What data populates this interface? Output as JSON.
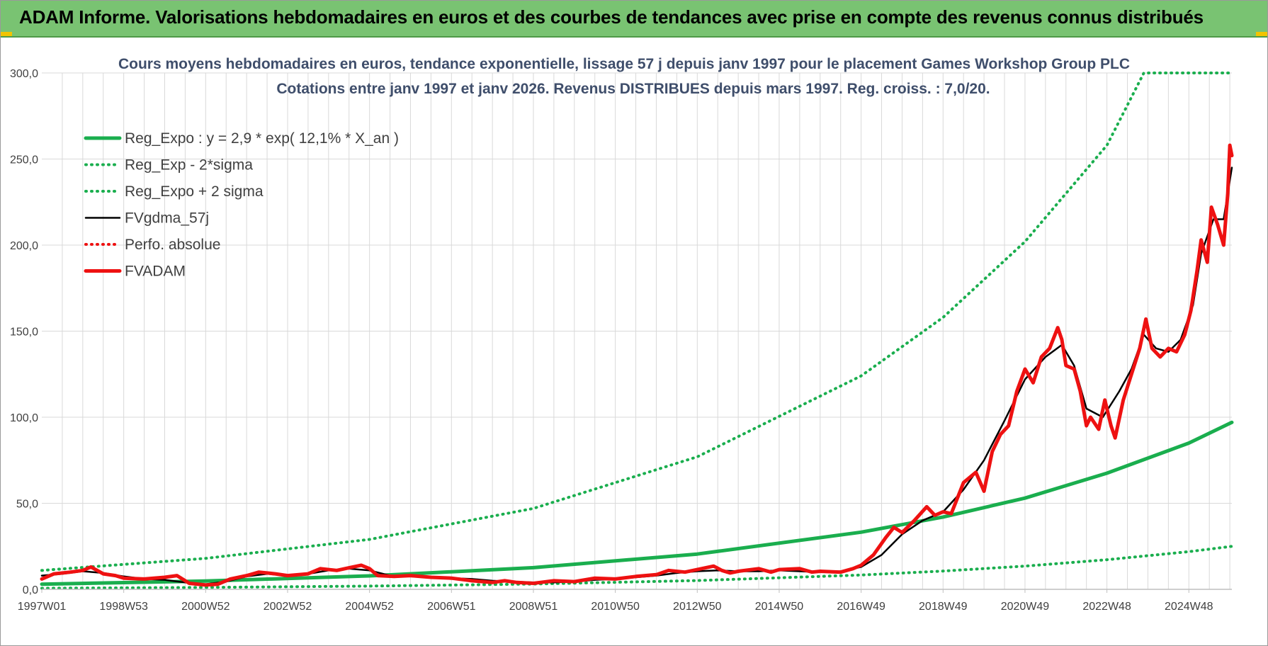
{
  "banner": {
    "title": "ADAM Informe. Valorisations hebdomadaires en euros et des courbes de tendances avec prise en compte des revenus connus distribués"
  },
  "colors": {
    "banner_bg": "#79c372",
    "reg_green": "#1aae4e",
    "fvgdma_black": "#000000",
    "fvadam_red": "#ee1111",
    "gridline": "#d9d9d9",
    "title_text": "#3f4e6b"
  },
  "chart_data": {
    "type": "line",
    "title": "Cours moyens hebdomadaires en euros, tendance exponentielle, lissage 57 j depuis janv 1997 pour le placement Games Workshop Group PLC",
    "subtitle": "Cotations entre janv 1997 et janv 2026. Revenus DISTRIBUES depuis mars 1997. Reg. croiss. : 7,0/20.",
    "xlabel": "",
    "ylabel": "",
    "xlim": [
      1997.0,
      2026.05
    ],
    "ylim": [
      0,
      300
    ],
    "y_ticks": [
      0,
      50,
      100,
      150,
      200,
      250,
      300
    ],
    "y_tick_labels": [
      "0,0",
      "50,0",
      "100,0",
      "150,0",
      "200,0",
      "250,0",
      "300,0"
    ],
    "x_ticks": [
      1997.0,
      1999.0,
      2001.0,
      2003.0,
      2005.0,
      2007.0,
      2009.0,
      2011.0,
      2013.0,
      2015.0,
      2017.0,
      2019.0,
      2021.0,
      2023.0,
      2025.0
    ],
    "x_tick_labels": [
      "1997W01",
      "1998W53",
      "2000W52",
      "2002W52",
      "2004W52",
      "2006W51",
      "2008W51",
      "2010W50",
      "2012W50",
      "2014W50",
      "2016W49",
      "2018W49",
      "2020W49",
      "2022W48",
      "2024W48"
    ],
    "grid": true,
    "legend_position": "top-left",
    "series": [
      {
        "name": "Reg_Expo : y = 2,9 * exp( 12,1% *  X_an )",
        "style": "solid-thick",
        "color": "#1aae4e",
        "points": [
          [
            1997.0,
            3.0
          ],
          [
            2001.0,
            4.8
          ],
          [
            2005.0,
            7.8
          ],
          [
            2009.0,
            12.6
          ],
          [
            2013.0,
            20.5
          ],
          [
            2017.0,
            33.2
          ],
          [
            2019.0,
            42.0
          ],
          [
            2021.0,
            53.0
          ],
          [
            2023.0,
            67.5
          ],
          [
            2025.0,
            85.0
          ],
          [
            2026.05,
            97.0
          ]
        ]
      },
      {
        "name": "Reg_Exp - 2*sigma",
        "style": "dotted",
        "color": "#1aae4e",
        "points": [
          [
            1997.0,
            0.6
          ],
          [
            2001.0,
            1.1
          ],
          [
            2005.0,
            1.9
          ],
          [
            2009.0,
            3.1
          ],
          [
            2013.0,
            5.1
          ],
          [
            2017.0,
            8.3
          ],
          [
            2019.0,
            10.6
          ],
          [
            2021.0,
            13.5
          ],
          [
            2023.0,
            17.2
          ],
          [
            2025.0,
            21.9
          ],
          [
            2026.05,
            25.0
          ]
        ]
      },
      {
        "name": "Reg_Expo + 2 sigma",
        "style": "dotted",
        "color": "#1aae4e",
        "points": [
          [
            1997.0,
            11.0
          ],
          [
            2001.0,
            18.0
          ],
          [
            2005.0,
            29.0
          ],
          [
            2009.0,
            47.0
          ],
          [
            2013.0,
            77.0
          ],
          [
            2017.0,
            124.0
          ],
          [
            2019.0,
            158.0
          ],
          [
            2021.0,
            202.0
          ],
          [
            2023.0,
            258.0
          ],
          [
            2023.9,
            300.0
          ],
          [
            2026.05,
            300.0
          ]
        ]
      },
      {
        "name": "FVgdma_57j",
        "style": "solid",
        "color": "#000000",
        "points": [
          [
            1997.0,
            8.0
          ],
          [
            1997.5,
            9.0
          ],
          [
            1998.0,
            10.5
          ],
          [
            1998.5,
            9.5
          ],
          [
            1999.0,
            7.5
          ],
          [
            1999.5,
            6.0
          ],
          [
            2000.0,
            5.5
          ],
          [
            2000.5,
            4.0
          ],
          [
            2001.0,
            3.0
          ],
          [
            2001.5,
            4.5
          ],
          [
            2002.0,
            7.5
          ],
          [
            2002.5,
            9.0
          ],
          [
            2003.0,
            8.0
          ],
          [
            2003.5,
            9.0
          ],
          [
            2004.0,
            11.0
          ],
          [
            2004.5,
            12.0
          ],
          [
            2005.0,
            11.0
          ],
          [
            2005.5,
            8.0
          ],
          [
            2006.0,
            7.5
          ],
          [
            2006.5,
            7.0
          ],
          [
            2007.0,
            6.5
          ],
          [
            2007.5,
            6.0
          ],
          [
            2008.0,
            5.0
          ],
          [
            2008.5,
            4.5
          ],
          [
            2009.0,
            4.0
          ],
          [
            2009.5,
            4.0
          ],
          [
            2010.0,
            4.5
          ],
          [
            2010.5,
            5.5
          ],
          [
            2011.0,
            6.0
          ],
          [
            2011.5,
            7.0
          ],
          [
            2012.0,
            8.0
          ],
          [
            2012.5,
            9.5
          ],
          [
            2013.0,
            10.5
          ],
          [
            2013.5,
            11.0
          ],
          [
            2014.0,
            10.5
          ],
          [
            2014.5,
            10.5
          ],
          [
            2015.0,
            11.0
          ],
          [
            2015.5,
            10.5
          ],
          [
            2016.0,
            10.0
          ],
          [
            2016.5,
            10.5
          ],
          [
            2017.0,
            13.0
          ],
          [
            2017.5,
            20.0
          ],
          [
            2018.0,
            32.0
          ],
          [
            2018.5,
            40.0
          ],
          [
            2019.0,
            45.0
          ],
          [
            2019.5,
            58.0
          ],
          [
            2020.0,
            75.0
          ],
          [
            2020.5,
            98.0
          ],
          [
            2021.0,
            122.0
          ],
          [
            2021.5,
            135.0
          ],
          [
            2021.9,
            142.0
          ],
          [
            2022.2,
            130.0
          ],
          [
            2022.5,
            105.0
          ],
          [
            2022.9,
            100.0
          ],
          [
            2023.3,
            115.0
          ],
          [
            2023.6,
            128.0
          ],
          [
            2023.9,
            148.0
          ],
          [
            2024.2,
            140.0
          ],
          [
            2024.5,
            138.0
          ],
          [
            2024.8,
            145.0
          ],
          [
            2025.1,
            165.0
          ],
          [
            2025.3,
            195.0
          ],
          [
            2025.6,
            215.0
          ],
          [
            2025.85,
            215.0
          ],
          [
            2026.05,
            245.0
          ]
        ]
      },
      {
        "name": "Perfo. absolue",
        "style": "dotted",
        "color": "#ee1111",
        "points": []
      },
      {
        "name": "FVADAM",
        "style": "solid-thick",
        "color": "#ee1111",
        "points": [
          [
            1997.0,
            6.0
          ],
          [
            1997.3,
            9.0
          ],
          [
            1997.7,
            10.0
          ],
          [
            1998.0,
            11.0
          ],
          [
            1998.2,
            13.0
          ],
          [
            1998.5,
            9.0
          ],
          [
            1998.8,
            8.0
          ],
          [
            1999.0,
            6.5
          ],
          [
            1999.5,
            6.0
          ],
          [
            2000.0,
            7.0
          ],
          [
            2000.3,
            8.0
          ],
          [
            2000.6,
            3.5
          ],
          [
            2001.0,
            2.5
          ],
          [
            2001.3,
            3.0
          ],
          [
            2001.6,
            6.0
          ],
          [
            2002.0,
            8.0
          ],
          [
            2002.3,
            10.0
          ],
          [
            2002.7,
            9.0
          ],
          [
            2003.0,
            8.0
          ],
          [
            2003.5,
            9.0
          ],
          [
            2003.8,
            12.0
          ],
          [
            2004.2,
            11.0
          ],
          [
            2004.5,
            12.5
          ],
          [
            2004.8,
            14.0
          ],
          [
            2005.0,
            12.0
          ],
          [
            2005.2,
            8.0
          ],
          [
            2005.6,
            7.5
          ],
          [
            2006.0,
            8.0
          ],
          [
            2006.5,
            7.0
          ],
          [
            2007.0,
            6.5
          ],
          [
            2007.5,
            5.0
          ],
          [
            2008.0,
            4.0
          ],
          [
            2008.3,
            5.0
          ],
          [
            2008.6,
            4.0
          ],
          [
            2009.0,
            3.5
          ],
          [
            2009.5,
            5.0
          ],
          [
            2010.0,
            4.5
          ],
          [
            2010.5,
            6.5
          ],
          [
            2011.0,
            6.0
          ],
          [
            2011.5,
            7.5
          ],
          [
            2012.0,
            8.5
          ],
          [
            2012.3,
            11.0
          ],
          [
            2012.7,
            10.0
          ],
          [
            2013.0,
            11.5
          ],
          [
            2013.4,
            13.5
          ],
          [
            2013.6,
            11.0
          ],
          [
            2013.8,
            9.5
          ],
          [
            2014.0,
            10.5
          ],
          [
            2014.5,
            12.0
          ],
          [
            2014.8,
            10.0
          ],
          [
            2015.0,
            11.5
          ],
          [
            2015.5,
            12.0
          ],
          [
            2015.8,
            10.0
          ],
          [
            2016.0,
            10.5
          ],
          [
            2016.5,
            10.0
          ],
          [
            2016.8,
            12.0
          ],
          [
            2017.0,
            14.0
          ],
          [
            2017.3,
            20.0
          ],
          [
            2017.6,
            30.0
          ],
          [
            2017.8,
            36.0
          ],
          [
            2018.0,
            33.0
          ],
          [
            2018.3,
            40.0
          ],
          [
            2018.6,
            48.0
          ],
          [
            2018.8,
            43.0
          ],
          [
            2019.0,
            45.0
          ],
          [
            2019.2,
            44.0
          ],
          [
            2019.5,
            62.0
          ],
          [
            2019.8,
            68.0
          ],
          [
            2020.0,
            57.0
          ],
          [
            2020.2,
            80.0
          ],
          [
            2020.4,
            90.0
          ],
          [
            2020.6,
            95.0
          ],
          [
            2020.8,
            115.0
          ],
          [
            2021.0,
            128.0
          ],
          [
            2021.2,
            120.0
          ],
          [
            2021.4,
            135.0
          ],
          [
            2021.6,
            140.0
          ],
          [
            2021.8,
            152.0
          ],
          [
            2021.9,
            145.0
          ],
          [
            2022.0,
            130.0
          ],
          [
            2022.2,
            128.0
          ],
          [
            2022.35,
            115.0
          ],
          [
            2022.5,
            95.0
          ],
          [
            2022.6,
            100.0
          ],
          [
            2022.8,
            93.0
          ],
          [
            2022.95,
            110.0
          ],
          [
            2023.1,
            95.0
          ],
          [
            2023.2,
            88.0
          ],
          [
            2023.4,
            110.0
          ],
          [
            2023.6,
            125.0
          ],
          [
            2023.8,
            140.0
          ],
          [
            2023.95,
            157.0
          ],
          [
            2024.1,
            140.0
          ],
          [
            2024.3,
            135.0
          ],
          [
            2024.5,
            140.0
          ],
          [
            2024.7,
            138.0
          ],
          [
            2024.9,
            148.0
          ],
          [
            2025.05,
            162.0
          ],
          [
            2025.2,
            185.0
          ],
          [
            2025.3,
            203.0
          ],
          [
            2025.45,
            190.0
          ],
          [
            2025.55,
            222.0
          ],
          [
            2025.7,
            212.0
          ],
          [
            2025.85,
            200.0
          ],
          [
            2025.95,
            230.0
          ],
          [
            2026.0,
            258.0
          ],
          [
            2026.05,
            252.0
          ]
        ]
      }
    ]
  }
}
